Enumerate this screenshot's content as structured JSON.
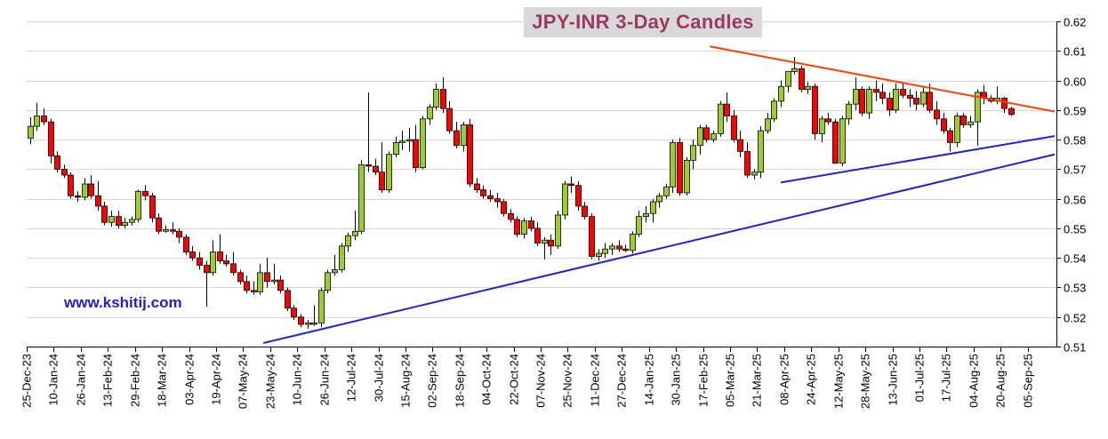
{
  "chart_data": {
    "type": "candlestick",
    "title": "JPY-INR 3-Day Candles",
    "watermark": "www.kshitij.com",
    "interval": "3-Day",
    "ylim": [
      0.51,
      0.62
    ],
    "yticks": [
      "0.51",
      "0.52",
      "0.53",
      "0.54",
      "0.55",
      "0.56",
      "0.57",
      "0.58",
      "0.59",
      "0.60",
      "0.61",
      "0.62"
    ],
    "xticks": [
      "25-Dec-23",
      "10-Jan-24",
      "26-Jan-24",
      "13-Feb-24",
      "29-Feb-24",
      "18-Mar-24",
      "03-Apr-24",
      "19-Apr-24",
      "07-May-24",
      "23-May-24",
      "10-Jun-24",
      "26-Jun-24",
      "12-Jul-24",
      "30-Jul-24",
      "15-Aug-24",
      "02-Sep-24",
      "18-Sep-24",
      "04-Oct-24",
      "22-Oct-24",
      "07-Nov-24",
      "25-Nov-24",
      "11-Dec-24",
      "27-Dec-24",
      "14-Jan-25",
      "30-Jan-25",
      "17-Feb-25",
      "05-Mar-25",
      "21-Mar-25",
      "08-Apr-25",
      "24-Apr-25",
      "12-May-25",
      "28-May-25",
      "13-Jun-25",
      "01-Jul-25",
      "17-Jul-25",
      "04-Aug-25",
      "20-Aug-25",
      "05-Sep-25"
    ],
    "grid": true,
    "up_color": "#9acd32",
    "down_color": "#ff0000",
    "candles": [
      {
        "o": 0.5805,
        "h": 0.5875,
        "l": 0.5785,
        "c": 0.5845
      },
      {
        "o": 0.5845,
        "h": 0.5925,
        "l": 0.583,
        "c": 0.588
      },
      {
        "o": 0.588,
        "h": 0.5905,
        "l": 0.585,
        "c": 0.586
      },
      {
        "o": 0.586,
        "h": 0.587,
        "l": 0.572,
        "c": 0.5745
      },
      {
        "o": 0.5745,
        "h": 0.576,
        "l": 0.569,
        "c": 0.57
      },
      {
        "o": 0.57,
        "h": 0.5715,
        "l": 0.567,
        "c": 0.568
      },
      {
        "o": 0.568,
        "h": 0.569,
        "l": 0.56,
        "c": 0.561
      },
      {
        "o": 0.561,
        "h": 0.5625,
        "l": 0.559,
        "c": 0.5605
      },
      {
        "o": 0.5605,
        "h": 0.567,
        "l": 0.5595,
        "c": 0.565
      },
      {
        "o": 0.565,
        "h": 0.568,
        "l": 0.56,
        "c": 0.561
      },
      {
        "o": 0.561,
        "h": 0.566,
        "l": 0.556,
        "c": 0.5575
      },
      {
        "o": 0.5575,
        "h": 0.559,
        "l": 0.551,
        "c": 0.552
      },
      {
        "o": 0.552,
        "h": 0.556,
        "l": 0.5505,
        "c": 0.554
      },
      {
        "o": 0.554,
        "h": 0.556,
        "l": 0.55,
        "c": 0.551
      },
      {
        "o": 0.551,
        "h": 0.5535,
        "l": 0.55,
        "c": 0.552
      },
      {
        "o": 0.552,
        "h": 0.554,
        "l": 0.551,
        "c": 0.553
      },
      {
        "o": 0.553,
        "h": 0.563,
        "l": 0.552,
        "c": 0.5625
      },
      {
        "o": 0.5625,
        "h": 0.5645,
        "l": 0.5595,
        "c": 0.561
      },
      {
        "o": 0.561,
        "h": 0.562,
        "l": 0.552,
        "c": 0.5535
      },
      {
        "o": 0.5535,
        "h": 0.555,
        "l": 0.548,
        "c": 0.549
      },
      {
        "o": 0.549,
        "h": 0.551,
        "l": 0.5485,
        "c": 0.5495
      },
      {
        "o": 0.5495,
        "h": 0.552,
        "l": 0.548,
        "c": 0.549
      },
      {
        "o": 0.549,
        "h": 0.55,
        "l": 0.545,
        "c": 0.547
      },
      {
        "o": 0.547,
        "h": 0.548,
        "l": 0.541,
        "c": 0.542
      },
      {
        "o": 0.542,
        "h": 0.544,
        "l": 0.539,
        "c": 0.54
      },
      {
        "o": 0.54,
        "h": 0.542,
        "l": 0.536,
        "c": 0.5375
      },
      {
        "o": 0.5375,
        "h": 0.539,
        "l": 0.5235,
        "c": 0.535
      },
      {
        "o": 0.535,
        "h": 0.546,
        "l": 0.534,
        "c": 0.542
      },
      {
        "o": 0.542,
        "h": 0.548,
        "l": 0.538,
        "c": 0.539
      },
      {
        "o": 0.539,
        "h": 0.541,
        "l": 0.537,
        "c": 0.538
      },
      {
        "o": 0.538,
        "h": 0.542,
        "l": 0.534,
        "c": 0.535
      },
      {
        "o": 0.535,
        "h": 0.536,
        "l": 0.531,
        "c": 0.532
      },
      {
        "o": 0.532,
        "h": 0.534,
        "l": 0.528,
        "c": 0.529
      },
      {
        "o": 0.529,
        "h": 0.532,
        "l": 0.5275,
        "c": 0.5285
      },
      {
        "o": 0.5285,
        "h": 0.538,
        "l": 0.5275,
        "c": 0.535
      },
      {
        "o": 0.535,
        "h": 0.54,
        "l": 0.53,
        "c": 0.532
      },
      {
        "o": 0.532,
        "h": 0.538,
        "l": 0.531,
        "c": 0.5325
      },
      {
        "o": 0.5325,
        "h": 0.534,
        "l": 0.528,
        "c": 0.529
      },
      {
        "o": 0.529,
        "h": 0.53,
        "l": 0.522,
        "c": 0.523
      },
      {
        "o": 0.523,
        "h": 0.524,
        "l": 0.519,
        "c": 0.52
      },
      {
        "o": 0.52,
        "h": 0.521,
        "l": 0.5165,
        "c": 0.5175
      },
      {
        "o": 0.5175,
        "h": 0.519,
        "l": 0.516,
        "c": 0.518
      },
      {
        "o": 0.518,
        "h": 0.524,
        "l": 0.517,
        "c": 0.518
      },
      {
        "o": 0.518,
        "h": 0.53,
        "l": 0.5165,
        "c": 0.529
      },
      {
        "o": 0.529,
        "h": 0.536,
        "l": 0.528,
        "c": 0.535
      },
      {
        "o": 0.535,
        "h": 0.541,
        "l": 0.534,
        "c": 0.536
      },
      {
        "o": 0.536,
        "h": 0.545,
        "l": 0.535,
        "c": 0.544
      },
      {
        "o": 0.544,
        "h": 0.5485,
        "l": 0.542,
        "c": 0.5475
      },
      {
        "o": 0.5475,
        "h": 0.556,
        "l": 0.546,
        "c": 0.549
      },
      {
        "o": 0.549,
        "h": 0.573,
        "l": 0.548,
        "c": 0.5715
      },
      {
        "o": 0.5715,
        "h": 0.596,
        "l": 0.569,
        "c": 0.571
      },
      {
        "o": 0.571,
        "h": 0.5735,
        "l": 0.568,
        "c": 0.569
      },
      {
        "o": 0.569,
        "h": 0.579,
        "l": 0.562,
        "c": 0.563
      },
      {
        "o": 0.563,
        "h": 0.576,
        "l": 0.562,
        "c": 0.575
      },
      {
        "o": 0.575,
        "h": 0.581,
        "l": 0.574,
        "c": 0.579
      },
      {
        "o": 0.579,
        "h": 0.583,
        "l": 0.5765,
        "c": 0.5795
      },
      {
        "o": 0.5795,
        "h": 0.584,
        "l": 0.576,
        "c": 0.58
      },
      {
        "o": 0.58,
        "h": 0.585,
        "l": 0.569,
        "c": 0.5705
      },
      {
        "o": 0.5705,
        "h": 0.588,
        "l": 0.57,
        "c": 0.587
      },
      {
        "o": 0.587,
        "h": 0.592,
        "l": 0.585,
        "c": 0.591
      },
      {
        "o": 0.591,
        "h": 0.599,
        "l": 0.59,
        "c": 0.597
      },
      {
        "o": 0.597,
        "h": 0.601,
        "l": 0.589,
        "c": 0.5905
      },
      {
        "o": 0.5905,
        "h": 0.593,
        "l": 0.582,
        "c": 0.583
      },
      {
        "o": 0.583,
        "h": 0.586,
        "l": 0.577,
        "c": 0.578
      },
      {
        "o": 0.578,
        "h": 0.586,
        "l": 0.576,
        "c": 0.585
      },
      {
        "o": 0.585,
        "h": 0.587,
        "l": 0.564,
        "c": 0.565
      },
      {
        "o": 0.565,
        "h": 0.567,
        "l": 0.562,
        "c": 0.563
      },
      {
        "o": 0.563,
        "h": 0.5645,
        "l": 0.56,
        "c": 0.561
      },
      {
        "o": 0.561,
        "h": 0.563,
        "l": 0.559,
        "c": 0.56
      },
      {
        "o": 0.56,
        "h": 0.562,
        "l": 0.557,
        "c": 0.559
      },
      {
        "o": 0.559,
        "h": 0.56,
        "l": 0.554,
        "c": 0.555
      },
      {
        "o": 0.555,
        "h": 0.5565,
        "l": 0.552,
        "c": 0.553
      },
      {
        "o": 0.553,
        "h": 0.554,
        "l": 0.547,
        "c": 0.548
      },
      {
        "o": 0.548,
        "h": 0.5535,
        "l": 0.5465,
        "c": 0.5525
      },
      {
        "o": 0.5525,
        "h": 0.554,
        "l": 0.549,
        "c": 0.55
      },
      {
        "o": 0.55,
        "h": 0.552,
        "l": 0.544,
        "c": 0.545
      },
      {
        "o": 0.545,
        "h": 0.547,
        "l": 0.5395,
        "c": 0.546
      },
      {
        "o": 0.546,
        "h": 0.548,
        "l": 0.541,
        "c": 0.544
      },
      {
        "o": 0.544,
        "h": 0.556,
        "l": 0.543,
        "c": 0.5545
      },
      {
        "o": 0.5545,
        "h": 0.566,
        "l": 0.553,
        "c": 0.565
      },
      {
        "o": 0.565,
        "h": 0.5675,
        "l": 0.562,
        "c": 0.5645
      },
      {
        "o": 0.5645,
        "h": 0.566,
        "l": 0.556,
        "c": 0.5575
      },
      {
        "o": 0.5575,
        "h": 0.559,
        "l": 0.553,
        "c": 0.554
      },
      {
        "o": 0.554,
        "h": 0.555,
        "l": 0.5395,
        "c": 0.5405
      },
      {
        "o": 0.5405,
        "h": 0.543,
        "l": 0.539,
        "c": 0.5415
      },
      {
        "o": 0.5415,
        "h": 0.545,
        "l": 0.54,
        "c": 0.543
      },
      {
        "o": 0.543,
        "h": 0.545,
        "l": 0.541,
        "c": 0.544
      },
      {
        "o": 0.544,
        "h": 0.546,
        "l": 0.542,
        "c": 0.543
      },
      {
        "o": 0.543,
        "h": 0.5445,
        "l": 0.542,
        "c": 0.5425
      },
      {
        "o": 0.5425,
        "h": 0.549,
        "l": 0.5415,
        "c": 0.548
      },
      {
        "o": 0.548,
        "h": 0.556,
        "l": 0.547,
        "c": 0.554
      },
      {
        "o": 0.554,
        "h": 0.5575,
        "l": 0.552,
        "c": 0.555
      },
      {
        "o": 0.555,
        "h": 0.56,
        "l": 0.552,
        "c": 0.559
      },
      {
        "o": 0.559,
        "h": 0.562,
        "l": 0.557,
        "c": 0.561
      },
      {
        "o": 0.561,
        "h": 0.565,
        "l": 0.56,
        "c": 0.564
      },
      {
        "o": 0.564,
        "h": 0.58,
        "l": 0.562,
        "c": 0.579
      },
      {
        "o": 0.579,
        "h": 0.5805,
        "l": 0.561,
        "c": 0.562
      },
      {
        "o": 0.562,
        "h": 0.574,
        "l": 0.561,
        "c": 0.573
      },
      {
        "o": 0.573,
        "h": 0.58,
        "l": 0.57,
        "c": 0.578
      },
      {
        "o": 0.578,
        "h": 0.585,
        "l": 0.575,
        "c": 0.584
      },
      {
        "o": 0.584,
        "h": 0.585,
        "l": 0.579,
        "c": 0.58
      },
      {
        "o": 0.58,
        "h": 0.583,
        "l": 0.579,
        "c": 0.582
      },
      {
        "o": 0.582,
        "h": 0.593,
        "l": 0.581,
        "c": 0.592
      },
      {
        "o": 0.592,
        "h": 0.596,
        "l": 0.586,
        "c": 0.588
      },
      {
        "o": 0.588,
        "h": 0.59,
        "l": 0.579,
        "c": 0.58
      },
      {
        "o": 0.58,
        "h": 0.583,
        "l": 0.574,
        "c": 0.576
      },
      {
        "o": 0.576,
        "h": 0.579,
        "l": 0.567,
        "c": 0.568
      },
      {
        "o": 0.568,
        "h": 0.57,
        "l": 0.5665,
        "c": 0.569
      },
      {
        "o": 0.569,
        "h": 0.5845,
        "l": 0.567,
        "c": 0.583
      },
      {
        "o": 0.583,
        "h": 0.589,
        "l": 0.582,
        "c": 0.587
      },
      {
        "o": 0.587,
        "h": 0.594,
        "l": 0.586,
        "c": 0.593
      },
      {
        "o": 0.593,
        "h": 0.6,
        "l": 0.591,
        "c": 0.598
      },
      {
        "o": 0.598,
        "h": 0.603,
        "l": 0.596,
        "c": 0.603
      },
      {
        "o": 0.603,
        "h": 0.608,
        "l": 0.602,
        "c": 0.604
      },
      {
        "o": 0.604,
        "h": 0.605,
        "l": 0.596,
        "c": 0.597
      },
      {
        "o": 0.597,
        "h": 0.5995,
        "l": 0.5955,
        "c": 0.598
      },
      {
        "o": 0.598,
        "h": 0.599,
        "l": 0.58,
        "c": 0.582
      },
      {
        "o": 0.582,
        "h": 0.588,
        "l": 0.579,
        "c": 0.587
      },
      {
        "o": 0.587,
        "h": 0.589,
        "l": 0.585,
        "c": 0.586
      },
      {
        "o": 0.586,
        "h": 0.587,
        "l": 0.572,
        "c": 0.572
      },
      {
        "o": 0.572,
        "h": 0.588,
        "l": 0.571,
        "c": 0.587
      },
      {
        "o": 0.587,
        "h": 0.593,
        "l": 0.585,
        "c": 0.592
      },
      {
        "o": 0.592,
        "h": 0.601,
        "l": 0.59,
        "c": 0.597
      },
      {
        "o": 0.597,
        "h": 0.598,
        "l": 0.588,
        "c": 0.589
      },
      {
        "o": 0.589,
        "h": 0.598,
        "l": 0.587,
        "c": 0.597
      },
      {
        "o": 0.597,
        "h": 0.6,
        "l": 0.593,
        "c": 0.596
      },
      {
        "o": 0.596,
        "h": 0.599,
        "l": 0.592,
        "c": 0.594
      },
      {
        "o": 0.594,
        "h": 0.596,
        "l": 0.588,
        "c": 0.59
      },
      {
        "o": 0.59,
        "h": 0.599,
        "l": 0.589,
        "c": 0.597
      },
      {
        "o": 0.597,
        "h": 0.599,
        "l": 0.594,
        "c": 0.595
      },
      {
        "o": 0.595,
        "h": 0.597,
        "l": 0.591,
        "c": 0.594
      },
      {
        "o": 0.594,
        "h": 0.5965,
        "l": 0.59,
        "c": 0.592
      },
      {
        "o": 0.592,
        "h": 0.598,
        "l": 0.591,
        "c": 0.596
      },
      {
        "o": 0.596,
        "h": 0.599,
        "l": 0.589,
        "c": 0.59
      },
      {
        "o": 0.59,
        "h": 0.593,
        "l": 0.585,
        "c": 0.587
      },
      {
        "o": 0.587,
        "h": 0.589,
        "l": 0.582,
        "c": 0.583
      },
      {
        "o": 0.583,
        "h": 0.584,
        "l": 0.576,
        "c": 0.579
      },
      {
        "o": 0.579,
        "h": 0.589,
        "l": 0.5775,
        "c": 0.588
      },
      {
        "o": 0.588,
        "h": 0.589,
        "l": 0.584,
        "c": 0.585
      },
      {
        "o": 0.585,
        "h": 0.588,
        "l": 0.584,
        "c": 0.586
      },
      {
        "o": 0.586,
        "h": 0.597,
        "l": 0.578,
        "c": 0.596
      },
      {
        "o": 0.596,
        "h": 0.5985,
        "l": 0.592,
        "c": 0.594
      },
      {
        "o": 0.594,
        "h": 0.595,
        "l": 0.5925,
        "c": 0.593
      },
      {
        "o": 0.593,
        "h": 0.598,
        "l": 0.592,
        "c": 0.594
      },
      {
        "o": 0.594,
        "h": 0.5945,
        "l": 0.589,
        "c": 0.5905
      },
      {
        "o": 0.5905,
        "h": 0.591,
        "l": 0.588,
        "c": 0.5885
      }
    ],
    "trendlines": [
      {
        "color": "#ff4000",
        "from": {
          "index": 100.5,
          "value": 0.6115
        },
        "to": {
          "index": 151.5,
          "value": 0.5895
        }
      },
      {
        "color": "#2222cc",
        "from": {
          "index": 111,
          "value": 0.5655
        },
        "to": {
          "index": 151.5,
          "value": 0.5812
        }
      },
      {
        "color": "#2222cc",
        "from": {
          "index": 34.5,
          "value": 0.5112
        },
        "to": {
          "index": 151.5,
          "value": 0.575
        }
      }
    ]
  }
}
